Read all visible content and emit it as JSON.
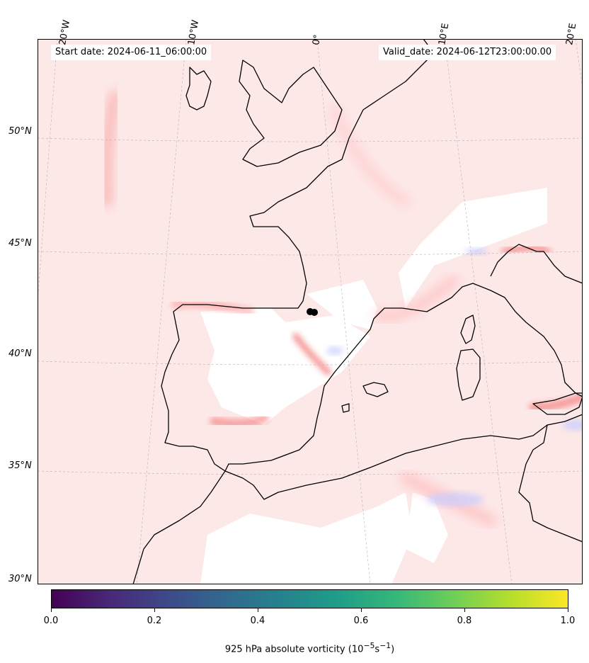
{
  "header": {
    "start_date": "Start date: 2024-06-11_06:00:00",
    "valid_date": "Valid_date: 2024-06-12T23:00:00.00"
  },
  "map": {
    "longitude_labels": [
      "20°W",
      "10°W",
      "0°",
      "10°E",
      "20°E"
    ],
    "latitude_labels": [
      "50°N",
      "45°N",
      "40°N",
      "35°N",
      "30°N"
    ],
    "field_colors": {
      "positive": "#ff9a9a",
      "strong_positive": "#f47070",
      "negative": "#c8ccff",
      "land_outline": "#000000"
    },
    "marker_color": "#000000"
  },
  "colorbar": {
    "tick_labels": [
      "0.0",
      "0.2",
      "0.4",
      "0.6",
      "0.8",
      "1.0"
    ],
    "title": "925 hPa absolute vorticity (10",
    "title_exp1": "−5",
    "title_mid": "s",
    "title_exp2": "−1",
    "title_end": ")",
    "colormap": "viridis"
  }
}
